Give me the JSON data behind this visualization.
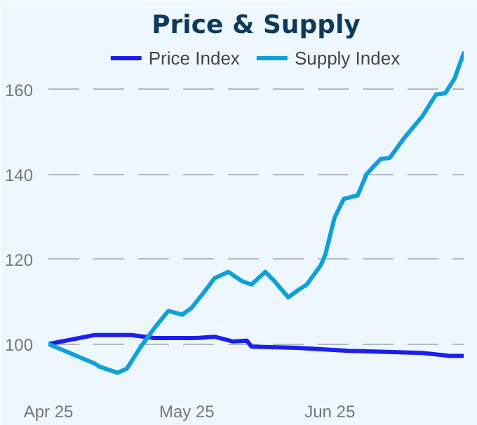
{
  "chart_data": {
    "type": "line",
    "title": "Price & Supply",
    "xlim": [
      "2025-04-01",
      "2025-06-30"
    ],
    "xticks": [
      {
        "value": "2025-04-01",
        "label": "Apr 25"
      },
      {
        "value": "2025-05-01",
        "label": "May 25"
      },
      {
        "value": "2025-06-01",
        "label": "Jun 25"
      }
    ],
    "ylim": [
      90,
      170
    ],
    "yticks": [
      100,
      120,
      140,
      160
    ],
    "grid": "y",
    "legend": "top",
    "line_style": "solid",
    "marker": "none",
    "series": [
      {
        "name": "Price Index",
        "color": "#1a1ff0",
        "x": [
          "2025-04-01",
          "2025-04-11",
          "2025-04-19",
          "2025-04-24",
          "2025-05-03",
          "2025-05-07",
          "2025-05-11",
          "2025-05-14",
          "2025-05-15",
          "2025-05-25",
          "2025-06-05",
          "2025-06-21",
          "2025-06-27",
          "2025-06-30"
        ],
        "values": [
          100,
          102.1,
          102.1,
          101.4,
          101.4,
          101.7,
          100.6,
          100.8,
          99.4,
          99.1,
          98.4,
          97.9,
          97.2,
          97.2
        ]
      },
      {
        "name": "Supply Index",
        "color": "#0fa0d8",
        "x": [
          "2025-04-01",
          "2025-04-11",
          "2025-04-12",
          "2025-04-16",
          "2025-04-18",
          "2025-04-21",
          "2025-04-24",
          "2025-04-27",
          "2025-04-30",
          "2025-05-02",
          "2025-05-05",
          "2025-05-07",
          "2025-05-10",
          "2025-05-13",
          "2025-05-15",
          "2025-05-18",
          "2025-05-20",
          "2025-05-23",
          "2025-05-25",
          "2025-05-27",
          "2025-05-30",
          "2025-05-31",
          "2025-06-02",
          "2025-06-04",
          "2025-06-07",
          "2025-06-09",
          "2025-06-12",
          "2025-06-14",
          "2025-06-17",
          "2025-06-21",
          "2025-06-24",
          "2025-06-26",
          "2025-06-28",
          "2025-06-30"
        ],
        "values": [
          100,
          95.4,
          94.7,
          93.2,
          94.2,
          99.3,
          103.8,
          107.8,
          106.9,
          108.5,
          112.6,
          115.5,
          117,
          114.8,
          114,
          117,
          114.8,
          111,
          112.6,
          114,
          118.5,
          121,
          129.7,
          134.2,
          135,
          140.1,
          143.6,
          143.9,
          148.4,
          153.6,
          158.8,
          159.1,
          162.5,
          168.5
        ]
      }
    ]
  }
}
